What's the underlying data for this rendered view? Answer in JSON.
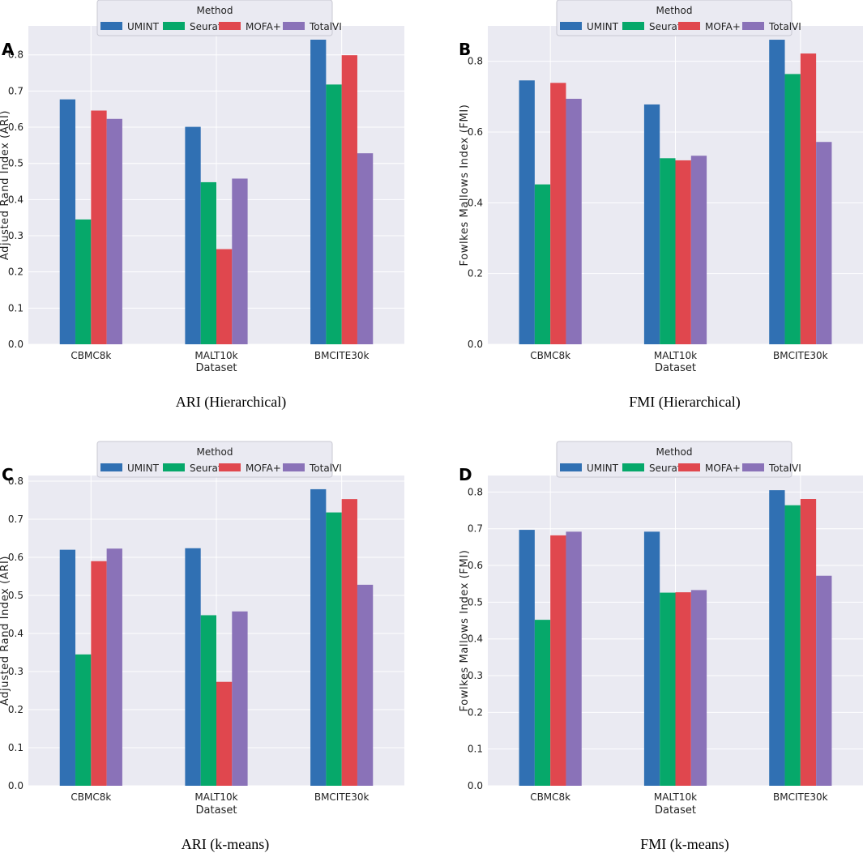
{
  "figure": {
    "legend_title": "Method",
    "dataset_label": "Dataset",
    "series_colors": {
      "UMINT": "#3070b3",
      "Seurat": "#06a86a",
      "MOFA+": "#e0474e",
      "TotalVI": "#8a72b8"
    },
    "plot_background": "#eaeaf2"
  },
  "chart_data": [
    {
      "panel_label": "A",
      "type": "bar",
      "title": "ARI (Hierarchical)",
      "xlabel": "Dataset",
      "ylabel": "Adjusted Rand Index (ARI)",
      "categories": [
        "CBMC8k",
        "MALT10k",
        "BMCITE30k"
      ],
      "ylim": [
        0,
        0.88
      ],
      "yticks": [
        0.0,
        0.1,
        0.2,
        0.3,
        0.4,
        0.5,
        0.6,
        0.7,
        0.8
      ],
      "ytick_labels": [
        "0.0",
        "0.1",
        "0.2",
        "0.3",
        "0.4",
        "0.5",
        "0.6",
        "0.7",
        "0.8"
      ],
      "legend_title": "Method",
      "legend_position": "top-center",
      "series": [
        {
          "name": "UMINT",
          "values": [
            0.677,
            0.601,
            0.842
          ]
        },
        {
          "name": "Seurat",
          "values": [
            0.345,
            0.448,
            0.718
          ]
        },
        {
          "name": "MOFA+",
          "values": [
            0.646,
            0.263,
            0.799
          ]
        },
        {
          "name": "TotalVI",
          "values": [
            0.623,
            0.458,
            0.528
          ]
        }
      ]
    },
    {
      "panel_label": "B",
      "type": "bar",
      "title": "FMI (Hierarchical)",
      "xlabel": "Dataset",
      "ylabel": "Fowlkes Mallows Index (FMI)",
      "categories": [
        "CBMC8k",
        "MALT10k",
        "BMCITE30k"
      ],
      "ylim": [
        0,
        0.9
      ],
      "yticks": [
        0.0,
        0.2,
        0.4,
        0.6,
        0.8
      ],
      "ytick_labels": [
        "0.0",
        "0.2",
        "0.4",
        "0.6",
        "0.8"
      ],
      "legend_title": "Method",
      "legend_position": "top-center",
      "series": [
        {
          "name": "UMINT",
          "values": [
            0.746,
            0.678,
            0.861
          ]
        },
        {
          "name": "Seurat",
          "values": [
            0.452,
            0.526,
            0.764
          ]
        },
        {
          "name": "MOFA+",
          "values": [
            0.739,
            0.52,
            0.822
          ]
        },
        {
          "name": "TotalVI",
          "values": [
            0.694,
            0.533,
            0.572
          ]
        }
      ]
    },
    {
      "panel_label": "C",
      "type": "bar",
      "title": "ARI (k-means)",
      "xlabel": "Dataset",
      "ylabel": "Adjusted Rand Index (ARI)",
      "categories": [
        "CBMC8k",
        "MALT10k",
        "BMCITE30k"
      ],
      "ylim": [
        0,
        0.815
      ],
      "yticks": [
        0.0,
        0.1,
        0.2,
        0.3,
        0.4,
        0.5,
        0.6,
        0.7,
        0.8
      ],
      "ytick_labels": [
        "0.0",
        "0.1",
        "0.2",
        "0.3",
        "0.4",
        "0.5",
        "0.6",
        "0.7",
        "0.8"
      ],
      "legend_title": "Method",
      "legend_position": "top-center",
      "series": [
        {
          "name": "UMINT",
          "values": [
            0.62,
            0.624,
            0.779
          ]
        },
        {
          "name": "Seurat",
          "values": [
            0.345,
            0.448,
            0.718
          ]
        },
        {
          "name": "MOFA+",
          "values": [
            0.59,
            0.273,
            0.753
          ]
        },
        {
          "name": "TotalVI",
          "values": [
            0.623,
            0.458,
            0.528
          ]
        }
      ]
    },
    {
      "panel_label": "D",
      "type": "bar",
      "title": "FMI (k-means)",
      "xlabel": "Dataset",
      "ylabel": "Fowlkes Mallows Index (FMI)",
      "categories": [
        "CBMC8k",
        "MALT10k",
        "BMCITE30k"
      ],
      "ylim": [
        0,
        0.845
      ],
      "yticks": [
        0.0,
        0.1,
        0.2,
        0.3,
        0.4,
        0.5,
        0.6,
        0.7,
        0.8
      ],
      "ytick_labels": [
        "0.0",
        "0.1",
        "0.2",
        "0.3",
        "0.4",
        "0.5",
        "0.6",
        "0.7",
        "0.8"
      ],
      "legend_title": "Method",
      "legend_position": "top-center",
      "series": [
        {
          "name": "UMINT",
          "values": [
            0.697,
            0.692,
            0.805
          ]
        },
        {
          "name": "Seurat",
          "values": [
            0.452,
            0.526,
            0.764
          ]
        },
        {
          "name": "MOFA+",
          "values": [
            0.682,
            0.527,
            0.781
          ]
        },
        {
          "name": "TotalVI",
          "values": [
            0.692,
            0.533,
            0.572
          ]
        }
      ]
    }
  ]
}
